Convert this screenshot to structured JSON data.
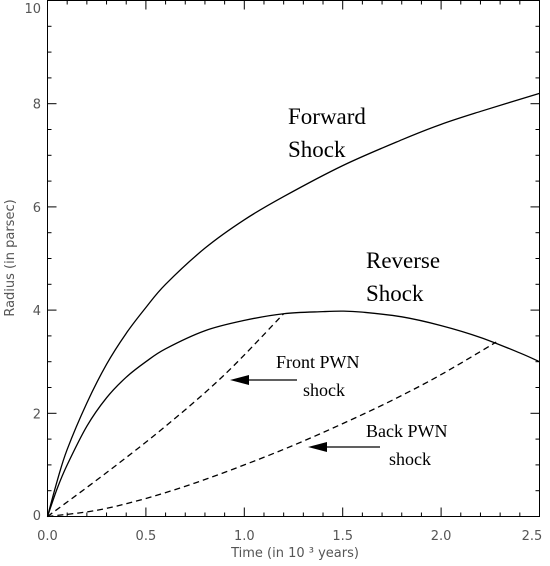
{
  "chart_data": {
    "type": "line",
    "xlabel": "Time  (in 10 ³ years)",
    "ylabel": "Radius  (in parsec)",
    "xlim": [
      0,
      2.5
    ],
    "ylim": [
      0,
      10
    ],
    "x_ticks": [
      "0.0",
      "0.5",
      "1.0",
      "1.5",
      "2.0",
      "2.5"
    ],
    "y_ticks": [
      "0",
      "2",
      "4",
      "6",
      "8",
      "10"
    ],
    "series": [
      {
        "id": "forward",
        "style": "solid",
        "x": [
          0,
          0.05,
          0.1,
          0.2,
          0.3,
          0.4,
          0.5,
          0.6,
          0.8,
          1.0,
          1.2,
          1.5,
          1.8,
          2.0,
          2.2,
          2.5
        ],
        "y": [
          0,
          0.7,
          1.3,
          2.2,
          2.95,
          3.55,
          4.05,
          4.5,
          5.2,
          5.75,
          6.2,
          6.8,
          7.3,
          7.6,
          7.85,
          8.2
        ]
      },
      {
        "id": "reverse",
        "style": "solid",
        "x": [
          0,
          0.05,
          0.1,
          0.2,
          0.3,
          0.4,
          0.5,
          0.6,
          0.8,
          1.0,
          1.2,
          1.4,
          1.5,
          1.6,
          1.8,
          2.0,
          2.2,
          2.4,
          2.5
        ],
        "y": [
          0,
          0.55,
          1.0,
          1.75,
          2.3,
          2.7,
          3.0,
          3.25,
          3.6,
          3.8,
          3.93,
          3.97,
          3.98,
          3.96,
          3.87,
          3.7,
          3.47,
          3.17,
          3.0
        ]
      },
      {
        "id": "front-pwn",
        "style": "dashed",
        "x": [
          0,
          0.3,
          0.6,
          0.9,
          1.2
        ],
        "y": [
          0,
          0.85,
          1.75,
          2.75,
          3.93
        ]
      },
      {
        "id": "back-pwn",
        "style": "dashed",
        "x": [
          0,
          0.25,
          0.5,
          0.75,
          1.0,
          1.25,
          1.5,
          1.75,
          2.0,
          2.28
        ],
        "y": [
          0,
          0.12,
          0.35,
          0.65,
          1.0,
          1.38,
          1.8,
          2.25,
          2.75,
          3.38
        ]
      }
    ],
    "annotations": {
      "forward_line1": "Forward",
      "forward_line2": "Shock",
      "reverse_line1": "Reverse",
      "reverse_line2": "Shock",
      "front_line1": "Front PWN",
      "front_line2": "shock",
      "back_line1": "Back PWN",
      "back_line2": "shock"
    }
  }
}
